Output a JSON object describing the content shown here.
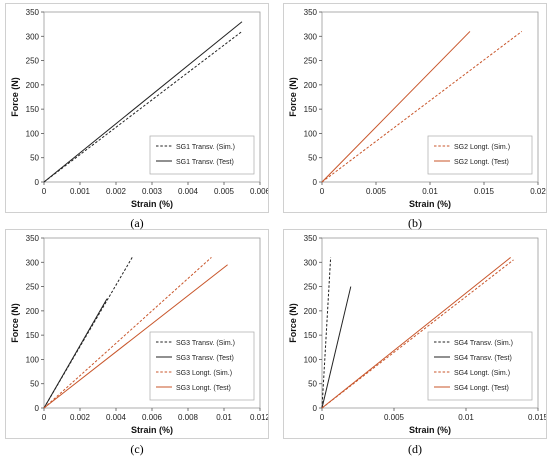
{
  "colors": {
    "black": "#222222",
    "orange": "#c8552a",
    "gridline": "#dddddd",
    "legend_border": "#aaaaaa"
  },
  "chart_data": [
    {
      "id": "a",
      "caption": "(a)",
      "type": "line",
      "xlabel": "Strain (%)",
      "ylabel": "Force (N)",
      "xlim": [
        0,
        0.006
      ],
      "ylim": [
        0,
        350
      ],
      "xticks": [
        0,
        0.001,
        0.002,
        0.003,
        0.004,
        0.005,
        0.006
      ],
      "xtick_labels": [
        "0",
        "0.001",
        "0.002",
        "0.003",
        "0.004",
        "0.005",
        "0.006"
      ],
      "yticks": [
        0,
        50,
        100,
        150,
        200,
        250,
        300,
        350
      ],
      "ytick_labels": [
        "0",
        "50",
        "100",
        "150",
        "200",
        "250",
        "300",
        "350"
      ],
      "legend_position": "bottom-right",
      "series": [
        {
          "name": "SG1 Transv. (Sim.)",
          "color": "#222222",
          "dash": true,
          "x": [
            0,
            0.0055
          ],
          "y": [
            0,
            310
          ]
        },
        {
          "name": "SG1 Transv. (Test)",
          "color": "#222222",
          "dash": false,
          "x": [
            0,
            0.0055
          ],
          "y": [
            0,
            330
          ]
        }
      ]
    },
    {
      "id": "b",
      "caption": "(b)",
      "type": "line",
      "xlabel": "Strain (%)",
      "ylabel": "Force (N)",
      "xlim": [
        0,
        0.02
      ],
      "ylim": [
        0,
        350
      ],
      "xticks": [
        0,
        0.005,
        0.01,
        0.015,
        0.02
      ],
      "xtick_labels": [
        "0",
        "0.005",
        "0.01",
        "0.015",
        "0.02"
      ],
      "yticks": [
        0,
        50,
        100,
        150,
        200,
        250,
        300,
        350
      ],
      "ytick_labels": [
        "0",
        "50",
        "100",
        "150",
        "200",
        "250",
        "300",
        "350"
      ],
      "legend_position": "bottom-right",
      "series": [
        {
          "name": "SG2 Longt. (Sim.)",
          "color": "#c8552a",
          "dash": true,
          "x": [
            0,
            0.0185
          ],
          "y": [
            0,
            310
          ]
        },
        {
          "name": "SG2 Longt. (Test)",
          "color": "#c8552a",
          "dash": false,
          "x": [
            0,
            0.0137
          ],
          "y": [
            0,
            310
          ]
        }
      ]
    },
    {
      "id": "c",
      "caption": "(c)",
      "type": "line",
      "xlabel": "Strain (%)",
      "ylabel": "Force (N)",
      "xlim": [
        0,
        0.012
      ],
      "ylim": [
        0,
        350
      ],
      "xticks": [
        0,
        0.002,
        0.004,
        0.006,
        0.008,
        0.01,
        0.012
      ],
      "xtick_labels": [
        "0",
        "0.002",
        "0.004",
        "0.006",
        "0.008",
        "0.01",
        "0.012"
      ],
      "yticks": [
        0,
        50,
        100,
        150,
        200,
        250,
        300,
        350
      ],
      "ytick_labels": [
        "0",
        "50",
        "100",
        "150",
        "200",
        "250",
        "300",
        "350"
      ],
      "legend_position": "bottom-right",
      "series": [
        {
          "name": "SG3 Transv. (Sim.)",
          "color": "#222222",
          "dash": true,
          "x": [
            0,
            0.0049
          ],
          "y": [
            0,
            310
          ]
        },
        {
          "name": "SG3 Transv. (Test)",
          "color": "#222222",
          "dash": false,
          "x": [
            0,
            0.0035
          ],
          "y": [
            0,
            225
          ]
        },
        {
          "name": "SG3 Longt. (Sim.)",
          "color": "#c8552a",
          "dash": true,
          "x": [
            0,
            0.0093
          ],
          "y": [
            0,
            310
          ]
        },
        {
          "name": "SG3 Longt. (Test)",
          "color": "#c8552a",
          "dash": false,
          "x": [
            0,
            0.0102
          ],
          "y": [
            0,
            295
          ]
        }
      ]
    },
    {
      "id": "d",
      "caption": "(d)",
      "type": "line",
      "xlabel": "Strain (%)",
      "ylabel": "Force (N)",
      "xlim": [
        0,
        0.015
      ],
      "ylim": [
        0,
        350
      ],
      "xticks": [
        0,
        0.005,
        0.01,
        0.015
      ],
      "xtick_labels": [
        "0",
        "0.005",
        "0.01",
        "0.015"
      ],
      "yticks": [
        0,
        50,
        100,
        150,
        200,
        250,
        300,
        350
      ],
      "ytick_labels": [
        "0",
        "50",
        "100",
        "150",
        "200",
        "250",
        "300",
        "350"
      ],
      "legend_position": "bottom-right",
      "series": [
        {
          "name": "SG4 Transv. (Sim.)",
          "color": "#222222",
          "dash": true,
          "x": [
            0,
            0.0006
          ],
          "y": [
            0,
            310
          ]
        },
        {
          "name": "SG4 Transv. (Test)",
          "color": "#222222",
          "dash": false,
          "x": [
            0,
            0.002
          ],
          "y": [
            0,
            250
          ]
        },
        {
          "name": "SG4 Longt. (Sim.)",
          "color": "#c8552a",
          "dash": true,
          "x": [
            0,
            0.0133
          ],
          "y": [
            0,
            305
          ]
        },
        {
          "name": "SG4 Longt. (Test)",
          "color": "#c8552a",
          "dash": false,
          "x": [
            0,
            0.0131
          ],
          "y": [
            0,
            310
          ]
        }
      ]
    }
  ]
}
